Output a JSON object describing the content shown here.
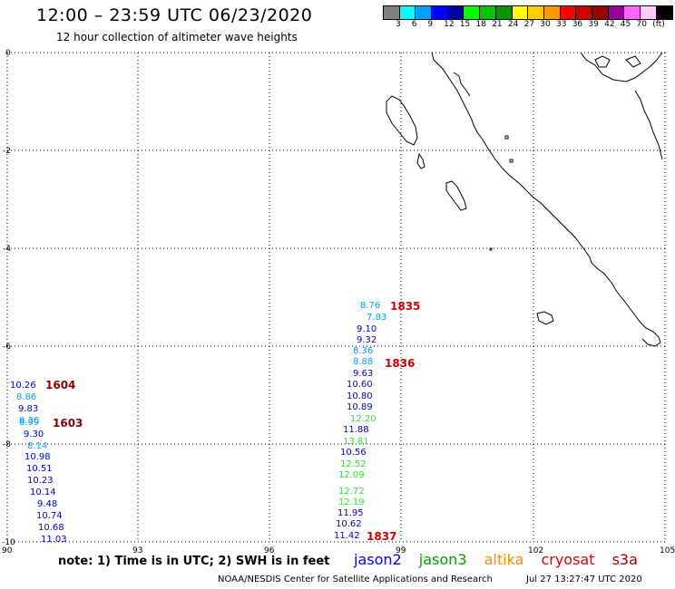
{
  "header": {
    "title": "12:00 – 23:59 UTC 06/23/2020",
    "subtitle": "12 hour collection of altimeter wave heights"
  },
  "legend": {
    "colors": [
      "#808080",
      "#00ffff",
      "#00a0ff",
      "#0000ff",
      "#0000a0",
      "#00ff00",
      "#00c800",
      "#009600",
      "#ffff00",
      "#ffcc00",
      "#ff9900",
      "#ff0000",
      "#cc0000",
      "#990000",
      "#990099",
      "#ff66ff",
      "#ffccff",
      "#000000"
    ],
    "labels": [
      "3",
      "6",
      "9",
      "12",
      "15",
      "18",
      "21",
      "24",
      "27",
      "30",
      "33",
      "36",
      "39",
      "42",
      "45",
      "70",
      "(ft)"
    ]
  },
  "axes": {
    "y_ticks": [
      "0",
      "-2",
      "-4",
      "-6",
      "-8",
      "-10"
    ],
    "x_ticks": [
      "90",
      "93",
      "96",
      "99",
      "102",
      "105"
    ]
  },
  "tracks": {
    "time_labels": [
      "1835",
      "1836",
      "1837",
      "1604",
      "1603"
    ],
    "east_values": [
      "8.76",
      "7.83",
      "9.10",
      "9.32",
      "8.36",
      "8.88",
      "9.63",
      "10.60",
      "10.80",
      "10.89",
      "12.20",
      "11.88",
      "13.81",
      "10.56",
      "12.52",
      "12.09",
      "12.72",
      "12.19",
      "11.95",
      "10.62",
      "11.42"
    ],
    "west_values": [
      "10.26",
      "8.86",
      "9.83",
      "8.36",
      "8.99",
      "9.30",
      "8.14",
      "10.98",
      "10.51",
      "10.23",
      "10.14",
      "9.48",
      "10.74",
      "10.68",
      "11.03"
    ]
  },
  "footer": {
    "note": "note: 1) Time is in UTC; 2) SWH is in feet",
    "satellites": [
      "jason2",
      "jason3",
      "altika",
      "cryosat",
      "s3a"
    ],
    "credit": "NOAA/NESDIS Center for Satellite Applications and Research",
    "timestamp": "Jul 27 13:27:47 UTC 2020"
  }
}
